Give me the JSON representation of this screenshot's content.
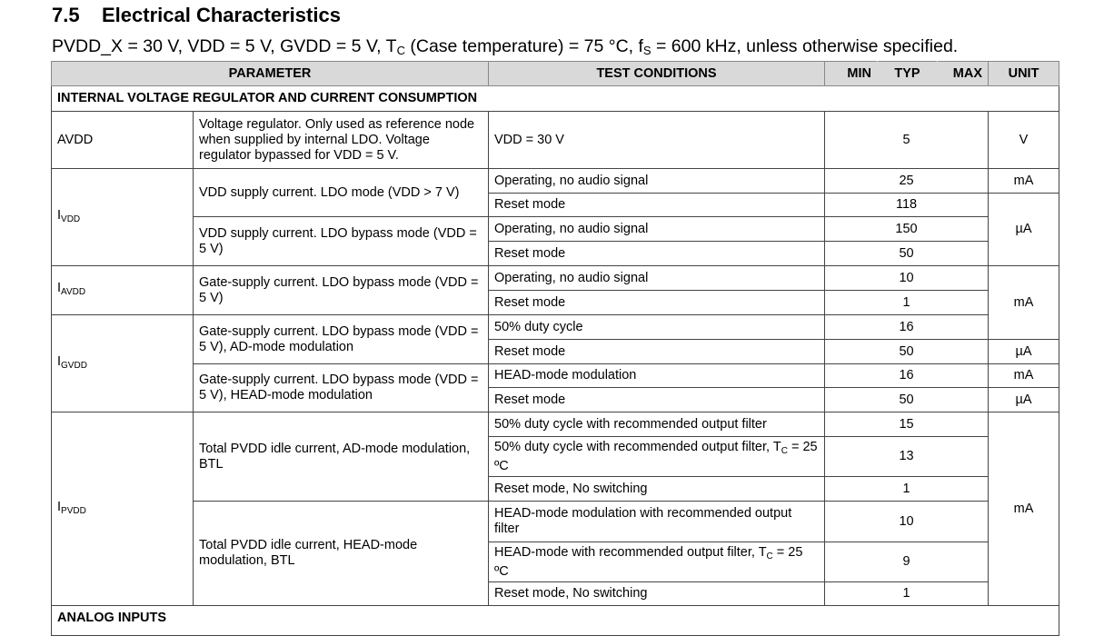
{
  "heading": {
    "number": "7.5",
    "text": "Electrical Characteristics"
  },
  "subtitle": {
    "part1": "PVDD_X = 30 V, VDD = 5 V, GVDD = 5 V, T",
    "sub1": "C",
    "part2": " (Case temperature) = 75 °C, f",
    "sub2": "S",
    "part3": " = 600 kHz, unless otherwise specified."
  },
  "columns": {
    "parameter": "PARAMETER",
    "conditions": "TEST CONDITIONS",
    "min": "MIN",
    "typ": "TYP",
    "max": "MAX",
    "unit": "UNIT"
  },
  "sections": [
    "INTERNAL VOLTAGE REGULATOR AND CURRENT CONSUMPTION",
    "ANALOG INPUTS"
  ],
  "params": {
    "avdd": "AVDD",
    "ivdd": {
      "main": "I",
      "sub": "VDD"
    },
    "iavdd": {
      "main": "I",
      "sub": "AVDD"
    },
    "igvdd": {
      "main": "I",
      "sub": "GVDD"
    },
    "ipvdd": {
      "main": "I",
      "sub": "PVDD"
    }
  },
  "descriptions": [
    "Voltage regulator. Only used as reference node when supplied by internal LDO. Voltage regulator bypassed for VDD = 5 V.",
    "VDD supply current. LDO mode (VDD > 7 V)",
    "VDD supply current. LDO bypass mode (VDD = 5 V)",
    "Gate-supply current. LDO bypass mode (VDD = 5 V)",
    "Gate-supply current. LDO bypass mode (VDD = 5 V), AD-mode modulation",
    "Gate-supply current. LDO bypass mode (VDD = 5 V), HEAD-mode modulation",
    "Total PVDD idle current, AD-mode modulation, BTL",
    "Total PVDD idle current, HEAD-mode modulation, BTL"
  ],
  "rows": [
    {
      "cond": "VDD = 30 V",
      "typ": "5"
    },
    {
      "cond": "Operating, no audio signal",
      "typ": "25"
    },
    {
      "cond": "Reset mode",
      "typ": "118"
    },
    {
      "cond": "Operating, no audio signal",
      "typ": "150"
    },
    {
      "cond": "Reset mode",
      "typ": "50"
    },
    {
      "cond": "Operating, no audio signal",
      "typ": "10"
    },
    {
      "cond": "Reset mode",
      "typ": "1"
    },
    {
      "cond": "50% duty cycle",
      "typ": "16"
    },
    {
      "cond": "Reset mode",
      "typ": "50"
    },
    {
      "cond": "HEAD-mode modulation",
      "typ": "16"
    },
    {
      "cond": "Reset mode",
      "typ": "50"
    },
    {
      "cond": "50% duty cycle with recommended output filter",
      "typ": "15"
    },
    {
      "cond": "50% duty cycle with recommended output filter, T",
      "cond_sub": "C",
      "cond_rest": " = 25 ºC",
      "typ": "13"
    },
    {
      "cond": "Reset mode, No switching",
      "typ": "1"
    },
    {
      "cond": "HEAD-mode modulation with recommended output filter",
      "typ": "10"
    },
    {
      "cond": "HEAD-mode with recommended output filter, T",
      "cond_sub": "C",
      "cond_rest": " = 25 ºC",
      "typ": "9"
    },
    {
      "cond": "Reset mode, No switching",
      "typ": "1"
    }
  ],
  "units": {
    "v": "V",
    "ma": "mA",
    "ua": "µA"
  },
  "colors": {
    "header_bg": "#d9d9d9",
    "border": "#444444"
  }
}
